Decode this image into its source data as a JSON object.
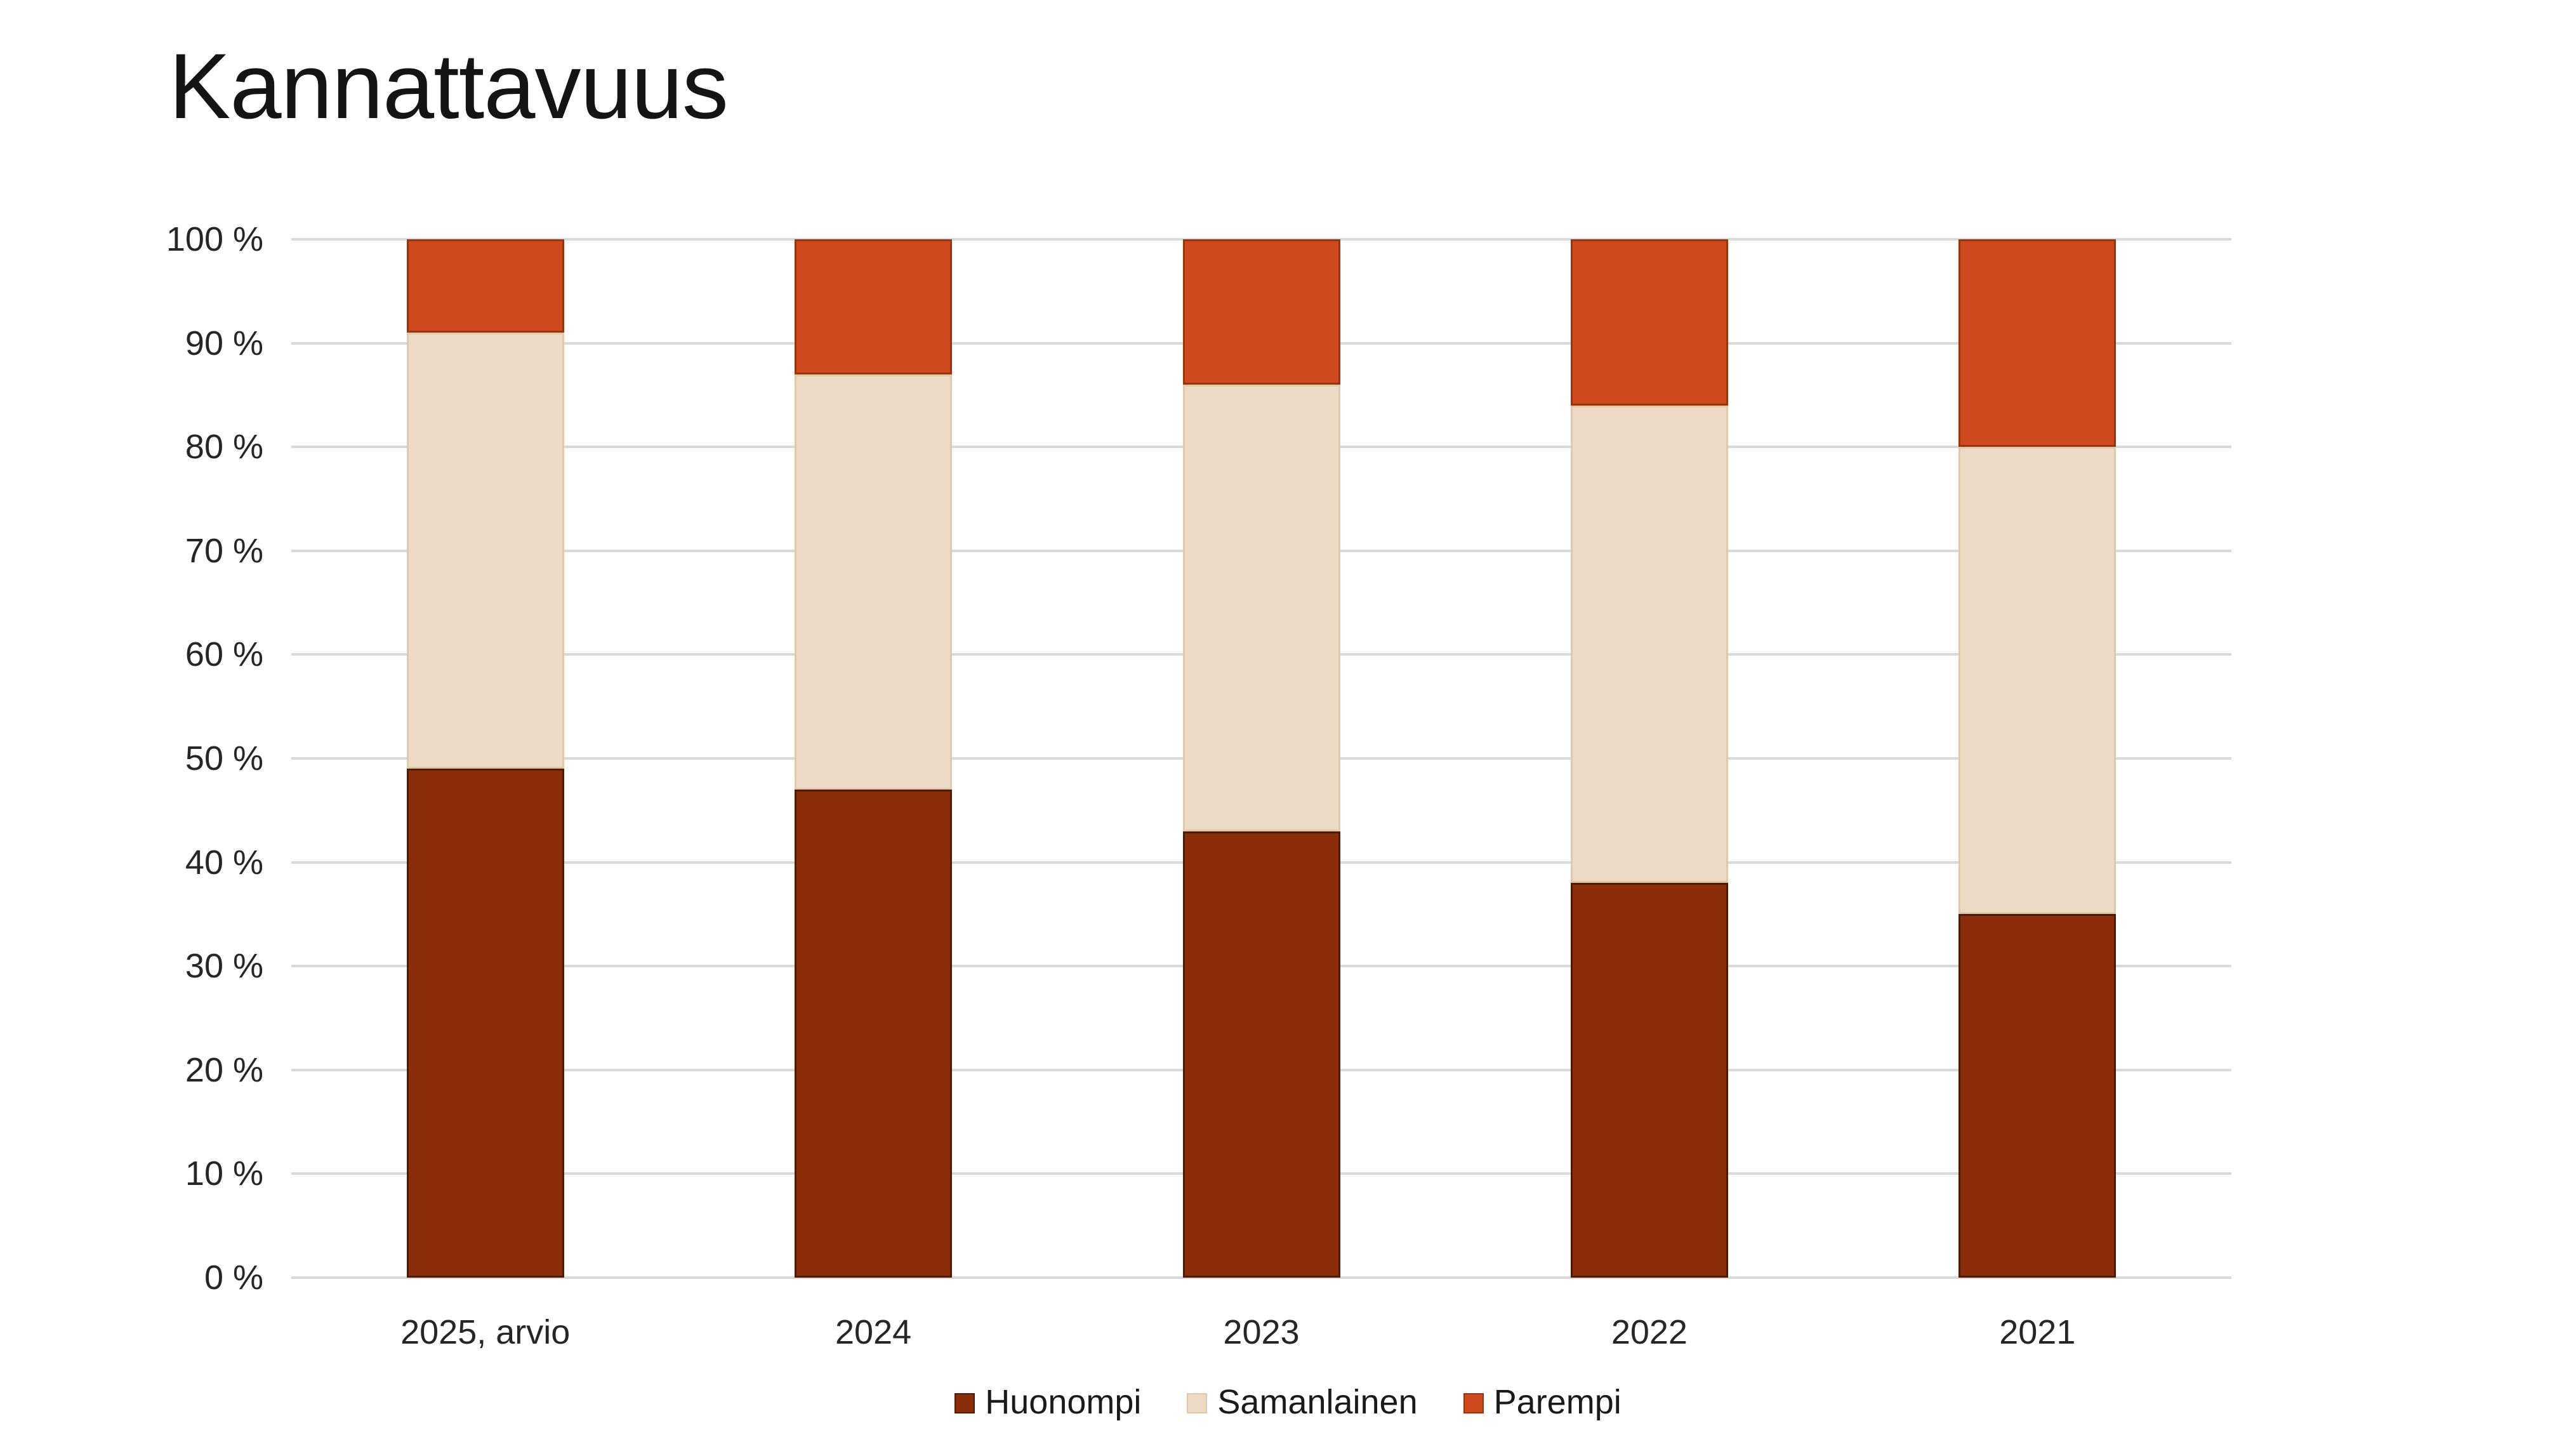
{
  "title": "Kannattavuus",
  "colors": {
    "background": "#FFFFFF",
    "gridline": "#D9D9D9",
    "title_text": "#141414",
    "axis_text": "#262626",
    "legend_text": "#1A1A1A"
  },
  "chart_data": {
    "type": "bar",
    "stacked": true,
    "orientation": "vertical",
    "title": "Kannattavuus",
    "categories": [
      "2025, arvio",
      "2024",
      "2023",
      "2022",
      "2021"
    ],
    "series": [
      {
        "name": "Huonompi",
        "color": "#8B2D08",
        "border_color": "#4D1A04",
        "values": [
          49,
          47,
          43,
          38,
          35
        ]
      },
      {
        "name": "Samanlainen",
        "color": "#EDDAC4",
        "border_color": "#E0C9A8",
        "values": [
          42,
          40,
          43,
          46,
          45
        ]
      },
      {
        "name": "Parempi",
        "color": "#CE4A1E",
        "border_color": "#9E3208",
        "values": [
          9,
          13,
          14,
          16,
          20
        ]
      }
    ],
    "xlabel": "",
    "ylabel": "",
    "y_axis": {
      "min": 0,
      "max": 100,
      "step": 10,
      "tick_labels": [
        "0 %",
        "10 %",
        "20 %",
        "30 %",
        "40 %",
        "50 %",
        "60 %",
        "70 %",
        "80 %",
        "90 %",
        "100 %"
      ]
    },
    "grid": true,
    "legend_position": "bottom",
    "legend_labels": [
      "Huonompi",
      "Samanlainen",
      "Parempi"
    ]
  }
}
